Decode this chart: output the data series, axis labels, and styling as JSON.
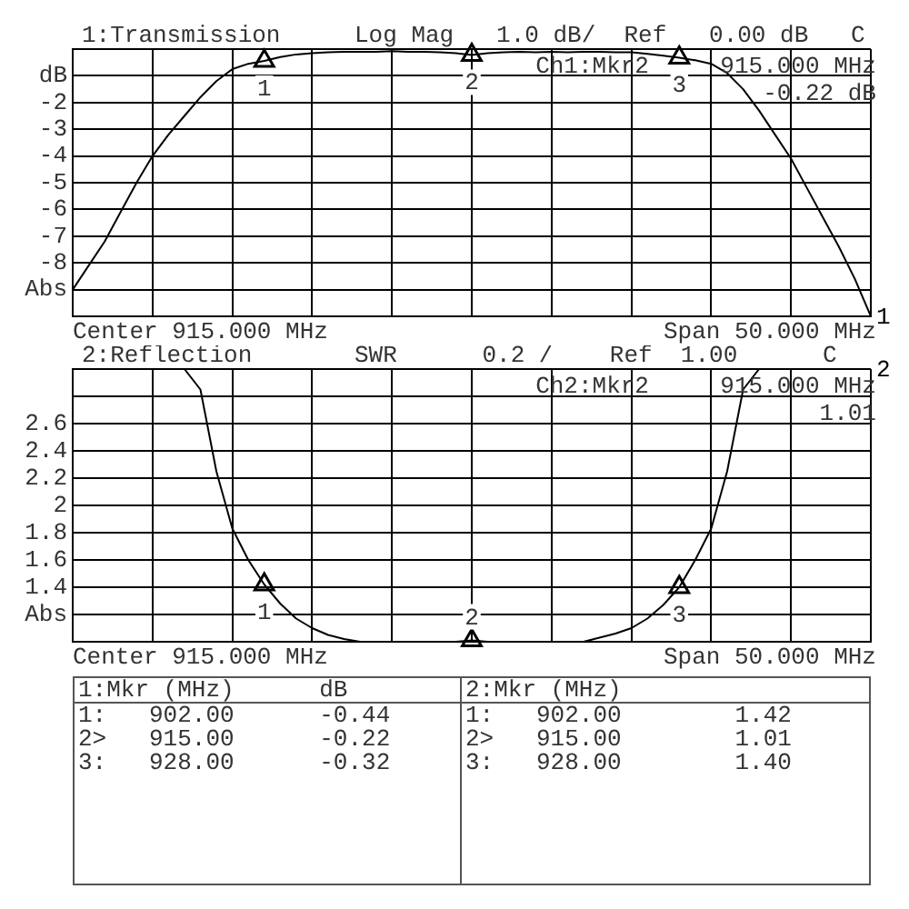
{
  "chart_data": [
    {
      "type": "line",
      "title": "1:Transmission",
      "subtitle": "Log Mag   1.0 dB/  Ref   0.00 dB   C",
      "categories": [
        null,
        null,
        null,
        null,
        null,
        null,
        null,
        null,
        null,
        null,
        null,
        null,
        null,
        null,
        null,
        null,
        null,
        null,
        null,
        null,
        null,
        null,
        null,
        null,
        null,
        null,
        null,
        null,
        null,
        null,
        null,
        null,
        null,
        null,
        null,
        null,
        null,
        null,
        null,
        null,
        null,
        null,
        null,
        null,
        null,
        null,
        null,
        null,
        null,
        null,
        null
      ],
      "ylim": [
        -10,
        0
      ],
      "yticks": [
        {
          "value": 0,
          "label": null
        },
        {
          "value": -1,
          "label": "dB"
        },
        -2,
        -3,
        -4,
        -5,
        -6,
        -7,
        -8,
        {
          "value": -9,
          "label": "Abs"
        },
        {
          "value": -10,
          "label": null
        }
      ],
      "tick_labels": "y",
      "grid": true,
      "line_style": "solid",
      "series": [
        {
          "name": "1",
          "color": "#000000",
          "values": [
            -9.0,
            -8.1,
            -7.2,
            -6.1,
            -5.0,
            -4.0,
            -3.2,
            -2.5,
            -1.8,
            -1.2,
            -0.75,
            -0.55,
            -0.44,
            -0.3,
            -0.2,
            -0.15,
            -0.12,
            -0.1,
            -0.1,
            -0.1,
            -0.08,
            -0.1,
            -0.1,
            -0.12,
            -0.15,
            -0.22,
            -0.15,
            -0.12,
            -0.1,
            -0.12,
            -0.1,
            -0.12,
            -0.1,
            -0.1,
            -0.12,
            -0.12,
            -0.18,
            -0.25,
            -0.32,
            -0.42,
            -0.55,
            -0.9,
            -1.5,
            -2.3,
            -3.2,
            -4.1,
            -5.2,
            -6.3,
            -7.4,
            -8.6,
            -10
          ]
        },
        {
          "type": "scatter",
          "marker": "triangle",
          "color": "#000000",
          "values": [
            null,
            null,
            null,
            null,
            null,
            null,
            null,
            null,
            null,
            null,
            null,
            null,
            -0.44,
            null,
            null,
            null,
            null,
            null,
            null,
            null,
            null,
            null,
            null,
            null,
            null,
            -0.22,
            null,
            null,
            null,
            null,
            null,
            null,
            null,
            null,
            null,
            null,
            null,
            null,
            -0.32,
            null,
            null,
            null,
            null,
            null,
            null,
            null,
            null,
            null,
            null,
            null,
            null
          ]
        }
      ],
      "annotations": [
        "Center 915.000 MHz",
        "Span 50.000 MHz",
        "Ch1:Mkr2",
        "915.000 MHz",
        "-0.22 dB",
        {
          "text": "1",
          "y": -0.44
        },
        {
          "text": "2",
          "y": -0.22
        },
        {
          "text": "3",
          "y": -0.32
        },
        "1:Mkr (MHz)      dB",
        "1:   902.00      -0.44",
        "2>   915.00      -0.22",
        "3:   928.00      -0.32"
      ]
    },
    {
      "type": "line",
      "title": "2:Reflection",
      "subtitle": "SWR      0.2 /    Ref  1.00      C",
      "categories": [
        null,
        null,
        null,
        null,
        null,
        null,
        null,
        null,
        null,
        null,
        null,
        null,
        null,
        null,
        null,
        null,
        null,
        null,
        null,
        null,
        null,
        null,
        null,
        null,
        null,
        null,
        null,
        null,
        null,
        null,
        null,
        null,
        null,
        null,
        null,
        null,
        null,
        null,
        null,
        null,
        null,
        null,
        null,
        null,
        null,
        null,
        null,
        null,
        null,
        null,
        null
      ],
      "ylim": [
        1,
        3
      ],
      "yticks": [
        {
          "value": 1,
          "label": null
        },
        {
          "value": 1.2,
          "label": "Abs"
        },
        1.4,
        1.6,
        1.8,
        2,
        2.2,
        2.4,
        2.6,
        {
          "value": 2.8,
          "label": null
        },
        {
          "value": 3,
          "label": null
        }
      ],
      "tick_labels": "y",
      "grid": true,
      "line_style": "solid",
      "series": [
        {
          "name": "2",
          "color": "#000000",
          "values": [
            3.0,
            3.0,
            3.0,
            3.0,
            3.0,
            3.0,
            3.0,
            3.0,
            2.85,
            2.25,
            1.83,
            1.6,
            1.42,
            1.28,
            1.17,
            1.1,
            1.05,
            1.02,
            1.0,
            1.0,
            1.0,
            1.0,
            1.0,
            1.0,
            1.0,
            1.01,
            1.0,
            1.0,
            1.0,
            1.0,
            1.0,
            1.0,
            1.0,
            1.03,
            1.06,
            1.1,
            1.17,
            1.27,
            1.4,
            1.6,
            1.83,
            2.25,
            2.85,
            3.0,
            3.0,
            3.0,
            3.0,
            3.0,
            3.0,
            3.0,
            3.0
          ]
        },
        {
          "type": "scatter",
          "marker": "triangle",
          "color": "#000000",
          "values": [
            null,
            null,
            null,
            null,
            null,
            null,
            null,
            null,
            null,
            null,
            null,
            null,
            1.42,
            null,
            null,
            null,
            null,
            null,
            null,
            null,
            null,
            null,
            null,
            null,
            null,
            1.01,
            null,
            null,
            null,
            null,
            null,
            null,
            null,
            null,
            null,
            null,
            null,
            null,
            1.4,
            null,
            null,
            null,
            null,
            null,
            null,
            null,
            null,
            null,
            null,
            null,
            null
          ]
        }
      ],
      "annotations": [
        "Center 915.000 MHz",
        "Span 50.000 MHz",
        "Ch2:Mkr2",
        "915.000 MHz",
        "1.01",
        {
          "text": "1",
          "y": 1.42
        },
        {
          "text": "2",
          "y": 1.01
        },
        {
          "text": "3",
          "y": 1.4
        },
        "2:Mkr (MHz)",
        "1:   902.00        1.42",
        "2>   915.00        1.01",
        "3:   928.00        1.40"
      ]
    }
  ]
}
